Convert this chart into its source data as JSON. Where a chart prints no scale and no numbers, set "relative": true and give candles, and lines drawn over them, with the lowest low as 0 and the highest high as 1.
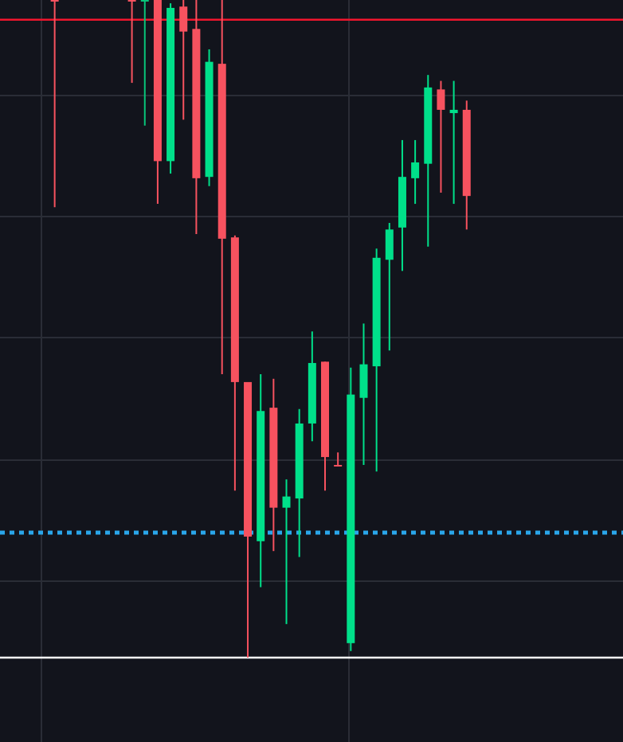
{
  "chart_data": {
    "type": "candlestick",
    "relative": true,
    "grid": true,
    "categories": [
      null,
      null,
      null,
      null,
      null,
      null,
      null,
      null,
      null,
      null,
      null,
      null,
      null,
      null,
      null,
      null,
      null,
      null,
      null,
      null,
      null,
      null,
      null,
      null,
      null,
      null,
      null,
      null,
      null,
      null,
      null,
      null,
      null,
      null,
      null,
      null,
      null
    ],
    "ohlc": [
      null,
      null,
      null,
      null,
      [
        1,
        1,
        0.685,
        1
      ],
      null,
      null,
      null,
      null,
      null,
      [
        1,
        1,
        0.874,
        1
      ],
      [
        1,
        1,
        0.809,
        1
      ],
      [
        1,
        1,
        0.69,
        0.755
      ],
      [
        0.755,
        0.995,
        0.736,
        0.988
      ],
      [
        0.99,
        1,
        0.818,
        0.952
      ],
      [
        0.956,
        1,
        0.644,
        0.729
      ],
      [
        0.731,
        0.925,
        0.717,
        0.906
      ],
      [
        0.903,
        1,
        0.431,
        0.637
      ],
      [
        0.639,
        0.642,
        0.254,
        0.419
      ],
      [
        0.419,
        0.419,
        0,
        0.184
      ],
      [
        0.177,
        0.431,
        0.107,
        0.375
      ],
      [
        0.38,
        0.424,
        0.162,
        0.228
      ],
      [
        0.228,
        0.271,
        0.051,
        0.245
      ],
      [
        0.242,
        0.378,
        0.153,
        0.356
      ],
      [
        0.356,
        0.496,
        0.329,
        0.448
      ],
      [
        0.45,
        0.45,
        0.254,
        0.305
      ],
      [
        0.293,
        0.312,
        0.291,
        0.291
      ],
      [
        0.022,
        0.441,
        0.01,
        0.4
      ],
      [
        0.395,
        0.508,
        0.293,
        0.446
      ],
      [
        0.443,
        0.622,
        0.283,
        0.608
      ],
      [
        0.605,
        0.661,
        0.467,
        0.651
      ],
      [
        0.654,
        0.787,
        0.588,
        0.731
      ],
      [
        0.729,
        0.787,
        0.69,
        0.753
      ],
      [
        0.751,
        0.886,
        0.625,
        0.867
      ],
      [
        0.864,
        0.877,
        0.707,
        0.833
      ],
      [
        0.828,
        0.877,
        0.69,
        0.833
      ],
      [
        0.833,
        0.847,
        0.651,
        0.702
      ]
    ],
    "colors": [
      null,
      null,
      null,
      null,
      "#f7525f",
      null,
      null,
      null,
      null,
      null,
      "#f7525f",
      "#08c57a",
      "#f7525f",
      "#00e08a",
      "#f7525f",
      "#f7525f",
      "#00e08a",
      "#f7525f",
      "#f7525f",
      "#f7525f",
      "#00e08a",
      "#f7525f",
      "#00e08a",
      "#00e08a",
      "#00e08a",
      "#f7525f",
      "#f7525f",
      "#00e08a",
      "#00e08a",
      "#00e08a",
      "#00e08a",
      "#00e08a",
      "#00e08a",
      "#00e08a",
      "#f7525f",
      "#00e08a",
      "#f7525f"
    ],
    "ref_lines": [
      {
        "axis": "y",
        "value": 0.97,
        "color": "#f0152d",
        "line_style": "solid"
      },
      {
        "axis": "y",
        "value": 0.19,
        "color": "#2aa6ea",
        "line_style": "dotted"
      },
      {
        "axis": "y",
        "value": 0,
        "color": "#ffffff",
        "line_style": "solid"
      }
    ]
  }
}
